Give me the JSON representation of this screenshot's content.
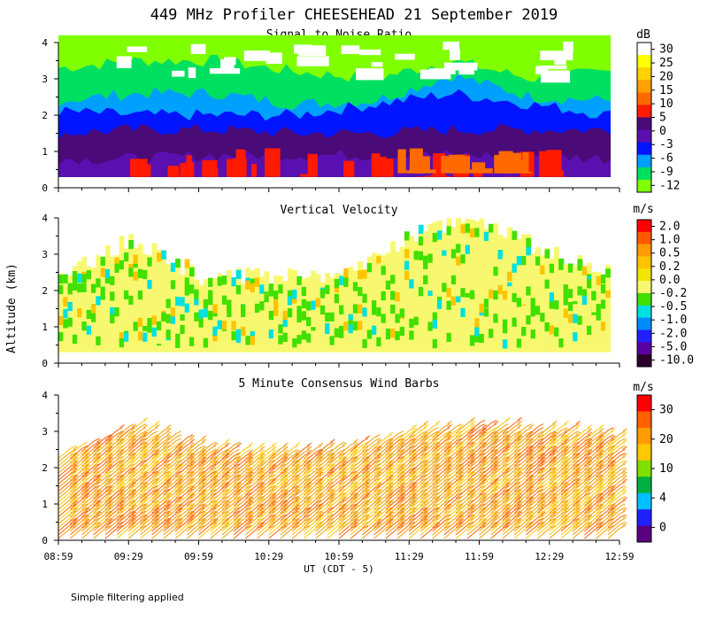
{
  "figure_title": "449 MHz Profiler CHEESEHEAD 21 September 2019",
  "footer_note": "Simple filtering applied",
  "shared": {
    "xlabel": "UT  (CDT - 5)",
    "ylabel": "Altitude (km)",
    "x_tick_labels": [
      "08:59",
      "09:29",
      "09:59",
      "10:29",
      "10:59",
      "11:29",
      "11:59",
      "12:29",
      "12:59"
    ],
    "xlim_minutes": [
      0,
      240
    ],
    "ylim_km": [
      0,
      4
    ],
    "y_tick_labels": [
      "0",
      "1",
      "2",
      "3",
      "4"
    ]
  },
  "chart_data": [
    {
      "type": "heatmap",
      "title": "Signal to Noise Ratio",
      "unit": "dB",
      "colorbar": {
        "labels": [
          "30",
          "25",
          "20",
          "15",
          "10",
          "5",
          "0",
          "-3",
          "-6",
          "-9",
          "-12"
        ],
        "colors": [
          "#ffffff",
          "#ffff00",
          "#ffd200",
          "#ffa000",
          "#ff6a00",
          "#ff1a00",
          "#4a0a78",
          "#5a10b0",
          "#0014ff",
          "#00a0ff",
          "#00e060",
          "#80ff00"
        ]
      },
      "layers": [
        {
          "label": "0",
          "lower_km": 0.3,
          "top_km_by_time": [
            0.8,
            0.8,
            0.9,
            0.9,
            0.9,
            0.9,
            0.9,
            0.8
          ]
        },
        {
          "label": "5",
          "lower_km": 0.3,
          "top_km_by_time": [
            1.5,
            1.6,
            1.6,
            1.5,
            1.5,
            1.6,
            1.6,
            1.6
          ]
        },
        {
          "label": "-3",
          "lower_km": 0.3,
          "top_km_by_time": [
            2.1,
            2.0,
            2.0,
            2.0,
            2.3,
            2.6,
            2.3,
            2.0
          ]
        },
        {
          "label": "-6",
          "lower_km": 0.3,
          "top_km_by_time": [
            2.4,
            2.6,
            2.6,
            2.3,
            2.4,
            3.1,
            2.5,
            2.4
          ]
        },
        {
          "label": "-9",
          "lower_km": 0.3,
          "top_km_by_time": [
            3.3,
            3.5,
            3.5,
            3.2,
            3.0,
            3.5,
            3.0,
            3.2
          ]
        }
      ],
      "high_snr_region": [
        {
          "label": "10",
          "time_min": [
            30,
            215
          ],
          "alt_km": [
            0.3,
            1.1
          ]
        },
        {
          "label": "15",
          "time_min": [
            145,
            200
          ],
          "alt_km": [
            0.4,
            1.1
          ]
        }
      ]
    },
    {
      "type": "heatmap",
      "title": "Vertical Velocity",
      "unit": "m/s",
      "colorbar": {
        "labels": [
          "2.0",
          "1.0",
          "0.5",
          "0.2",
          "0.0",
          "-0.2",
          "-0.5",
          "-1.0",
          "-2.0",
          "-5.0",
          "-10.0"
        ],
        "colors": [
          "#ff0000",
          "#ff5a00",
          "#ff9a00",
          "#ffc400",
          "#f0e600",
          "#f8f870",
          "#40e000",
          "#00e0e0",
          "#008cff",
          "#2020ff",
          "#5a00a0",
          "#280028"
        ]
      },
      "coverage_top_km": [
        2.4,
        3.4,
        2.4,
        2.4,
        2.4,
        3.5,
        4.0,
        3.0,
        2.4
      ],
      "dominant_label": "0.0"
    },
    {
      "type": "scatter",
      "title": "5 Minute Consensus Wind Barbs",
      "unit": "m/s",
      "colorbar": {
        "labels": [
          "30",
          "20",
          "10",
          "4",
          "0"
        ],
        "colors": [
          "#ff0000",
          "#ff6000",
          "#ff9a00",
          "#ffc800",
          "#80e000",
          "#00b040",
          "#00c0ff",
          "#2020ff",
          "#5a0080"
        ]
      },
      "barb_interval_min": 5,
      "barb_top_km": [
        2.3,
        3.0,
        2.4,
        2.3,
        2.4,
        2.9,
        3.0,
        2.9,
        2.7
      ],
      "barb_direction_deg": 230,
      "barb_speed_ms_range": [
        12,
        22
      ]
    }
  ]
}
